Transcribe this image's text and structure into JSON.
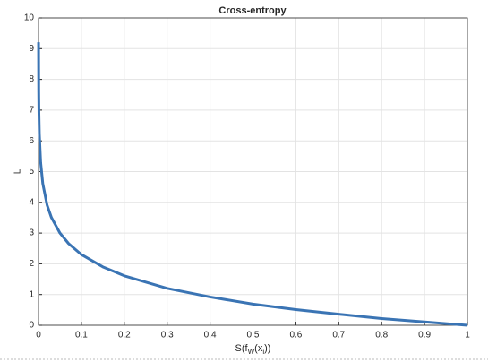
{
  "chart_data": {
    "type": "line",
    "title": "Cross-entropy",
    "xlabel": [
      "S(f",
      "W",
      "(x",
      "i",
      "))"
    ],
    "ylabel": "L",
    "x": [
      0.0001,
      0.0005,
      0.001,
      0.002,
      0.005,
      0.01,
      0.02,
      0.03,
      0.05,
      0.07,
      0.1,
      0.15,
      0.2,
      0.3,
      0.4,
      0.5,
      0.6,
      0.7,
      0.8,
      0.9,
      1
    ],
    "series": [
      {
        "color": "#3a74b4",
        "values": [
          9.21,
          7.6,
          6.91,
          6.21,
          5.3,
          4.61,
          3.91,
          3.51,
          3.0,
          2.66,
          2.3,
          1.9,
          1.61,
          1.2,
          0.92,
          0.69,
          0.51,
          0.36,
          0.22,
          0.11,
          0
        ]
      }
    ],
    "xlim": [
      0,
      1
    ],
    "ylim": [
      0,
      10
    ],
    "xticks": [
      0,
      0.1,
      0.2,
      0.3,
      0.4,
      0.5,
      0.6,
      0.7,
      0.8,
      0.9,
      1
    ],
    "yticks": [
      0,
      1,
      2,
      3,
      4,
      5,
      6,
      7,
      8,
      9,
      10
    ],
    "grid": true
  }
}
